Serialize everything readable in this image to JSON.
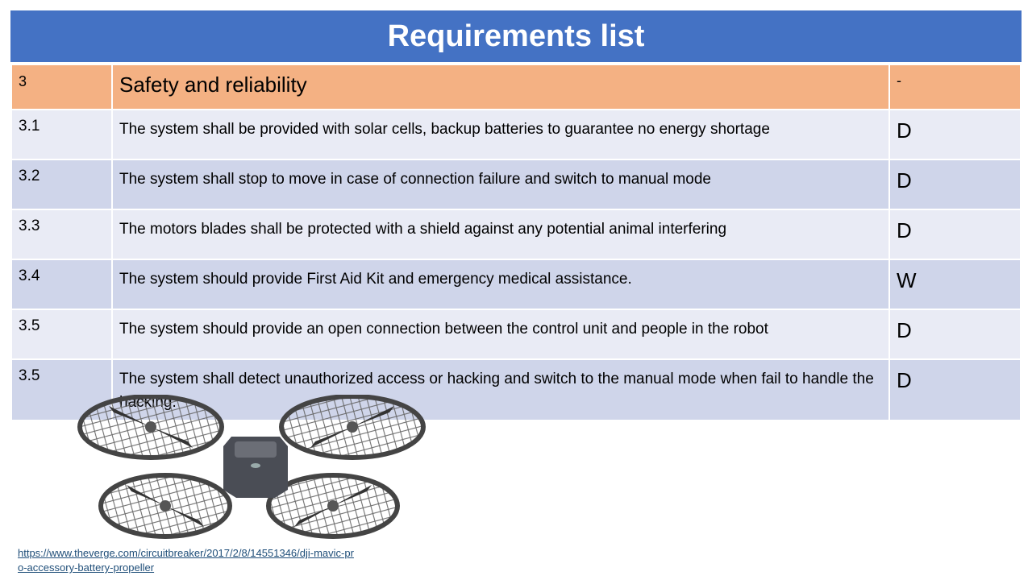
{
  "title": "Requirements list",
  "section": {
    "number": "3",
    "label": "Safety and reliability",
    "priority": "-"
  },
  "requirements": [
    {
      "id": "3.1",
      "text": "The system shall be provided with solar cells, backup batteries to guarantee no energy shortage",
      "priority": "D"
    },
    {
      "id": "3.2",
      "text": "The system shall stop to move in case of connection failure and switch to manual mode",
      "priority": "D"
    },
    {
      "id": "3.3",
      "text": "The motors blades shall be protected with a shield against any potential animal interfering",
      "priority": "D"
    },
    {
      "id": "3.4",
      "text": "The system should provide First Aid Kit and emergency medical assistance.",
      "priority": "W"
    },
    {
      "id": "3.5",
      "text": "The system should provide an open connection between the control unit and people in the robot",
      "priority": "D"
    },
    {
      "id": "3.5",
      "text": "The system shall detect unauthorized access or hacking and switch to the manual mode when fail to handle the hacking.",
      "priority": "D"
    }
  ],
  "image": {
    "icon": "drone-image"
  },
  "source_link": "https://www.theverge.com/circuitbreaker/2017/2/8/14551346/dji-mavic-pro-accessory-battery-propeller"
}
